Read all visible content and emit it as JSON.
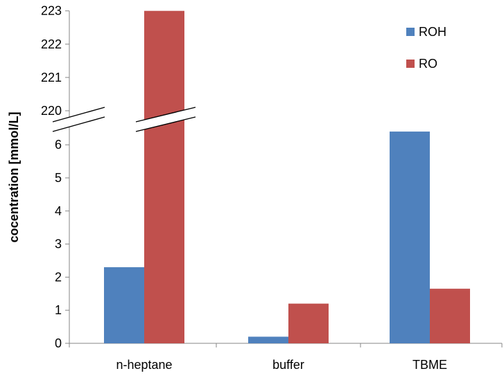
{
  "chart_data": {
    "type": "bar",
    "title": "",
    "xlabel": "",
    "ylabel": "cocentration [mmol/L]",
    "categories": [
      "n-heptane",
      "buffer",
      "TBME"
    ],
    "series": [
      {
        "name": "ROH",
        "color": "#4F81BD",
        "values": [
          2.3,
          0.2,
          6.4
        ]
      },
      {
        "name": "RO",
        "color": "#C0504D",
        "values": [
          223,
          1.2,
          1.65
        ]
      }
    ],
    "y_axis": {
      "broken": true,
      "lower_range": [
        0,
        6.5
      ],
      "upper_range": [
        219.5,
        223
      ],
      "lower_ticks": [
        "0",
        "1",
        "2",
        "3",
        "4",
        "5",
        "6"
      ],
      "upper_ticks": [
        "220",
        "221",
        "222",
        "223"
      ]
    },
    "grid": false,
    "legend_position": "top-right"
  }
}
